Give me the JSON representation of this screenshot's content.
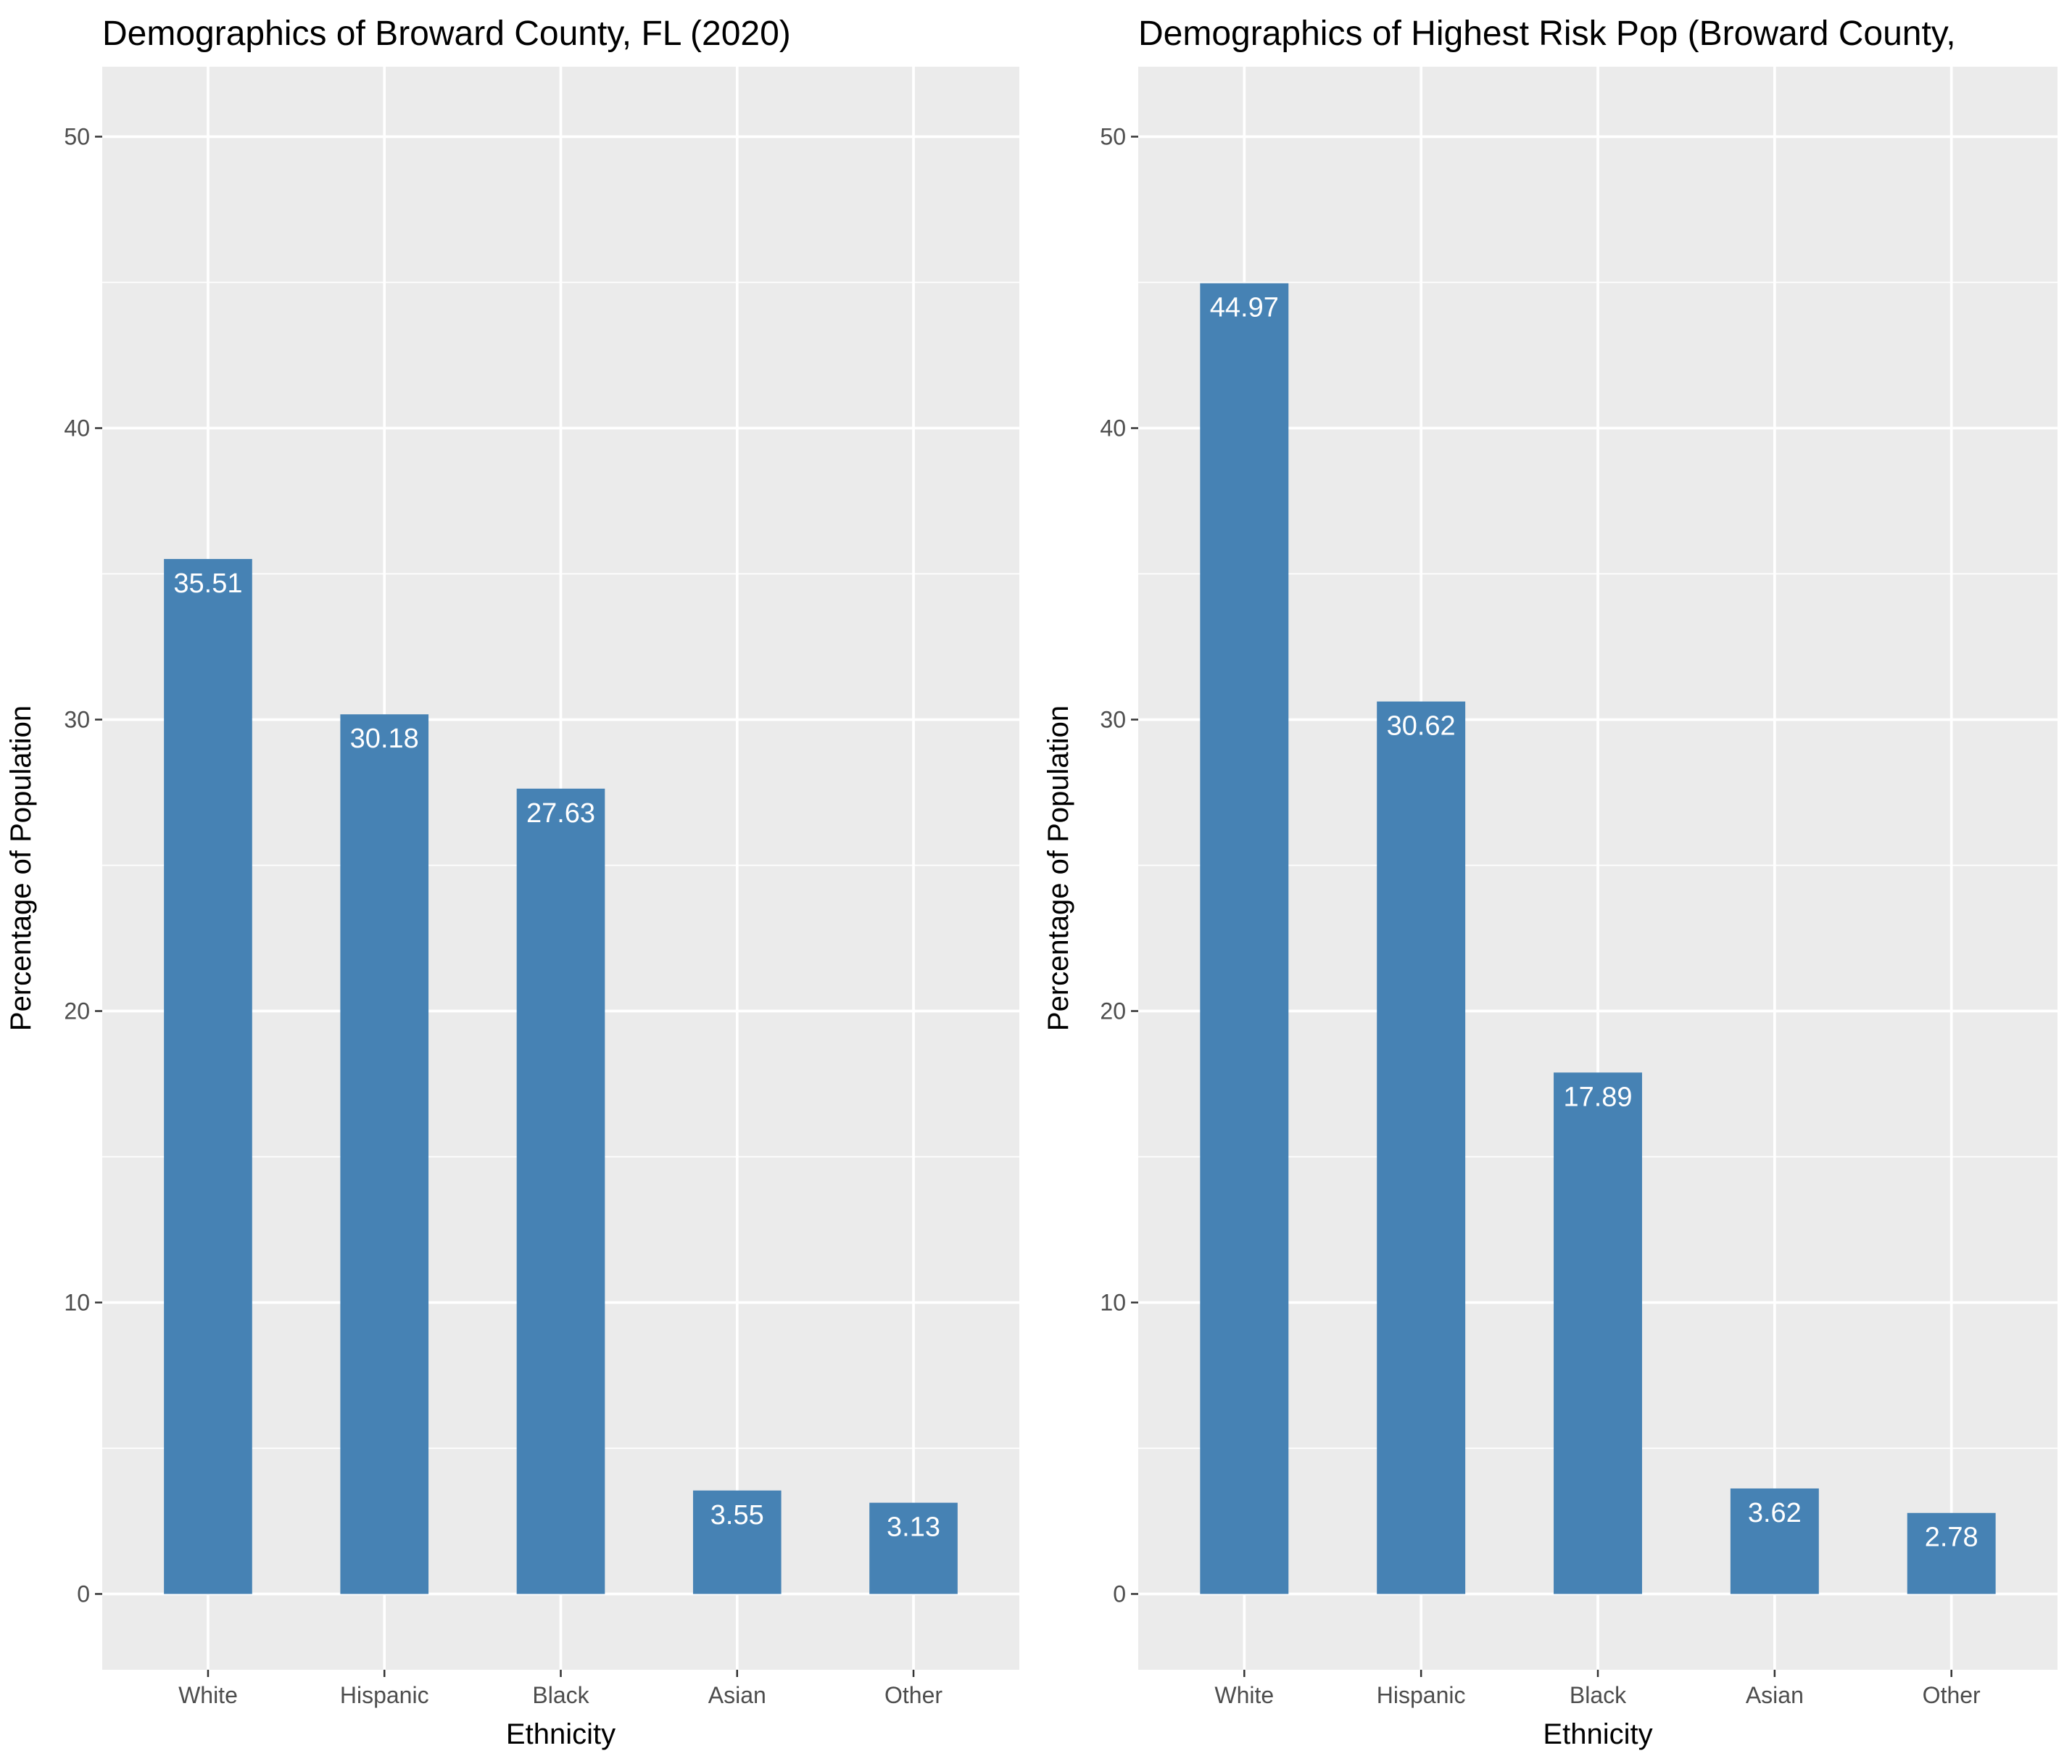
{
  "chart_data": [
    {
      "type": "bar",
      "title": "Demographics of Broward County, FL (2020)",
      "xlabel": "Ethnicity",
      "ylabel": "Percentage of Population",
      "categories": [
        "White",
        "Hispanic",
        "Black",
        "Asian",
        "Other"
      ],
      "values": [
        35.51,
        30.18,
        27.63,
        3.55,
        3.13
      ],
      "data_labels": [
        "35.51",
        "30.18",
        "27.63",
        "3.55",
        "3.13"
      ],
      "yticks": [
        0,
        10,
        20,
        30,
        40,
        50
      ],
      "ytick_labels": [
        "0",
        "10",
        "20",
        "30",
        "40",
        "50"
      ],
      "ylim": [
        -2.6,
        52.4
      ],
      "grid": true,
      "bar_color": "#4682B4",
      "panel_color": "#EBEBEB"
    },
    {
      "type": "bar",
      "title": "Demographics of Highest Risk Pop (Broward County,",
      "xlabel": "Ethnicity",
      "ylabel": "Percentage of Population",
      "categories": [
        "White",
        "Hispanic",
        "Black",
        "Asian",
        "Other"
      ],
      "values": [
        44.97,
        30.62,
        17.89,
        3.62,
        2.78
      ],
      "data_labels": [
        "44.97",
        "30.62",
        "17.89",
        "3.62",
        "2.78"
      ],
      "yticks": [
        0,
        10,
        20,
        30,
        40,
        50
      ],
      "ytick_labels": [
        "0",
        "10",
        "20",
        "30",
        "40",
        "50"
      ],
      "ylim": [
        -2.6,
        52.4
      ],
      "grid": true,
      "bar_color": "#4682B4",
      "panel_color": "#EBEBEB"
    }
  ]
}
